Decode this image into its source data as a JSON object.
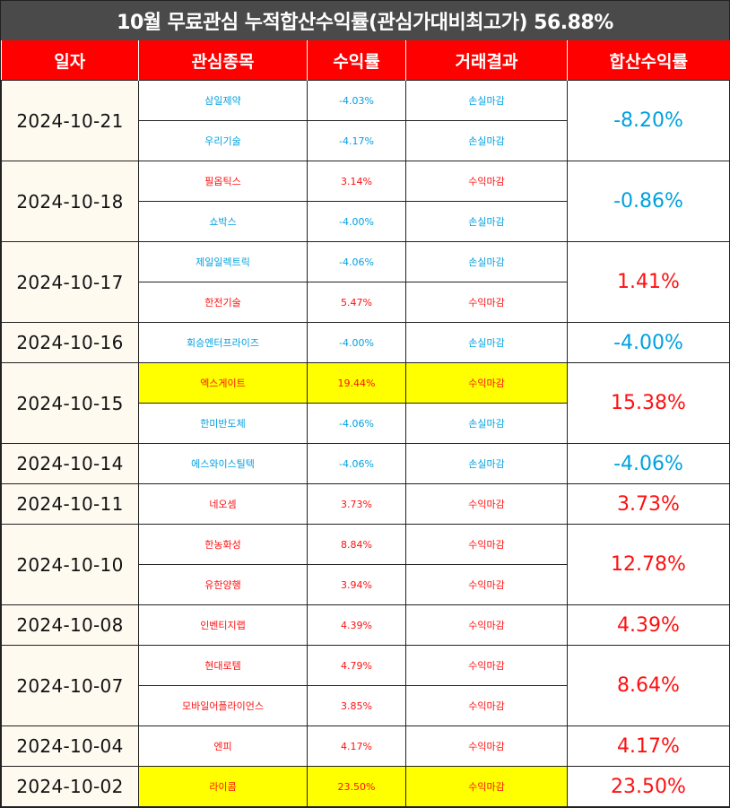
{
  "title": "10월 무료관심 누적합산수익률(관심가대비최고가) 56.88%",
  "headers": [
    "일자",
    "관심종목",
    "수익률",
    "거래결과",
    "합산수익률"
  ],
  "colors": {
    "header_bg": "#ff0000",
    "title_bg": "#4a4a4a",
    "loss": "#00a0e0",
    "gain": "#ff1010",
    "highlight": "#ffff00",
    "date_bg": "#fffaf0"
  },
  "groups": [
    {
      "date": "2024-10-21",
      "total": "-8.20%",
      "total_class": "loss",
      "rows": [
        {
          "name": "삼일제약",
          "rate": "-4.03%",
          "result": "손실마감",
          "cls": "loss",
          "hl": false
        },
        {
          "name": "우리기술",
          "rate": "-4.17%",
          "result": "손실마감",
          "cls": "loss",
          "hl": false
        }
      ]
    },
    {
      "date": "2024-10-18",
      "total": "-0.86%",
      "total_class": "loss",
      "rows": [
        {
          "name": "필옵틱스",
          "rate": "3.14%",
          "result": "수익마감",
          "cls": "gain",
          "hl": false
        },
        {
          "name": "쇼박스",
          "rate": "-4.00%",
          "result": "손실마감",
          "cls": "loss",
          "hl": false
        }
      ]
    },
    {
      "date": "2024-10-17",
      "total": "1.41%",
      "total_class": "gain",
      "rows": [
        {
          "name": "제일일렉트릭",
          "rate": "-4.06%",
          "result": "손실마감",
          "cls": "loss",
          "hl": false
        },
        {
          "name": "한전기술",
          "rate": "5.47%",
          "result": "수익마감",
          "cls": "gain",
          "hl": false
        }
      ]
    },
    {
      "date": "2024-10-16",
      "total": "-4.00%",
      "total_class": "loss",
      "rows": [
        {
          "name": "회승엔터프라이즈",
          "rate": "-4.00%",
          "result": "손실마감",
          "cls": "loss",
          "hl": false
        }
      ]
    },
    {
      "date": "2024-10-15",
      "total": "15.38%",
      "total_class": "gain",
      "rows": [
        {
          "name": "엑스게이트",
          "rate": "19.44%",
          "result": "수익마감",
          "cls": "gain",
          "hl": true
        },
        {
          "name": "한미반도체",
          "rate": "-4.06%",
          "result": "손실마감",
          "cls": "loss",
          "hl": false
        }
      ]
    },
    {
      "date": "2024-10-14",
      "total": "-4.06%",
      "total_class": "loss",
      "rows": [
        {
          "name": "에스와이스틸텍",
          "rate": "-4.06%",
          "result": "손실마감",
          "cls": "loss",
          "hl": false
        }
      ]
    },
    {
      "date": "2024-10-11",
      "total": "3.73%",
      "total_class": "gain",
      "rows": [
        {
          "name": "네오셈",
          "rate": "3.73%",
          "result": "수익마감",
          "cls": "gain",
          "hl": false
        }
      ]
    },
    {
      "date": "2024-10-10",
      "total": "12.78%",
      "total_class": "gain",
      "rows": [
        {
          "name": "한농화성",
          "rate": "8.84%",
          "result": "수익마감",
          "cls": "gain",
          "hl": false
        },
        {
          "name": "유한양행",
          "rate": "3.94%",
          "result": "수익마감",
          "cls": "gain",
          "hl": false
        }
      ]
    },
    {
      "date": "2024-10-08",
      "total": "4.39%",
      "total_class": "gain",
      "rows": [
        {
          "name": "인벤티지랩",
          "rate": "4.39%",
          "result": "수익마감",
          "cls": "gain",
          "hl": false
        }
      ]
    },
    {
      "date": "2024-10-07",
      "total": "8.64%",
      "total_class": "gain",
      "rows": [
        {
          "name": "현대로템",
          "rate": "4.79%",
          "result": "수익마감",
          "cls": "gain",
          "hl": false
        },
        {
          "name": "모바일어플라이언스",
          "rate": "3.85%",
          "result": "수익마감",
          "cls": "gain",
          "hl": false
        }
      ]
    },
    {
      "date": "2024-10-04",
      "total": "4.17%",
      "total_class": "gain",
      "rows": [
        {
          "name": "엔피",
          "rate": "4.17%",
          "result": "수익마감",
          "cls": "gain",
          "hl": false
        }
      ]
    },
    {
      "date": "2024-10-02",
      "total": "23.50%",
      "total_class": "gain",
      "rows": [
        {
          "name": "라이콤",
          "rate": "23.50%",
          "result": "수익마감",
          "cls": "gain",
          "hl": true
        }
      ]
    }
  ]
}
